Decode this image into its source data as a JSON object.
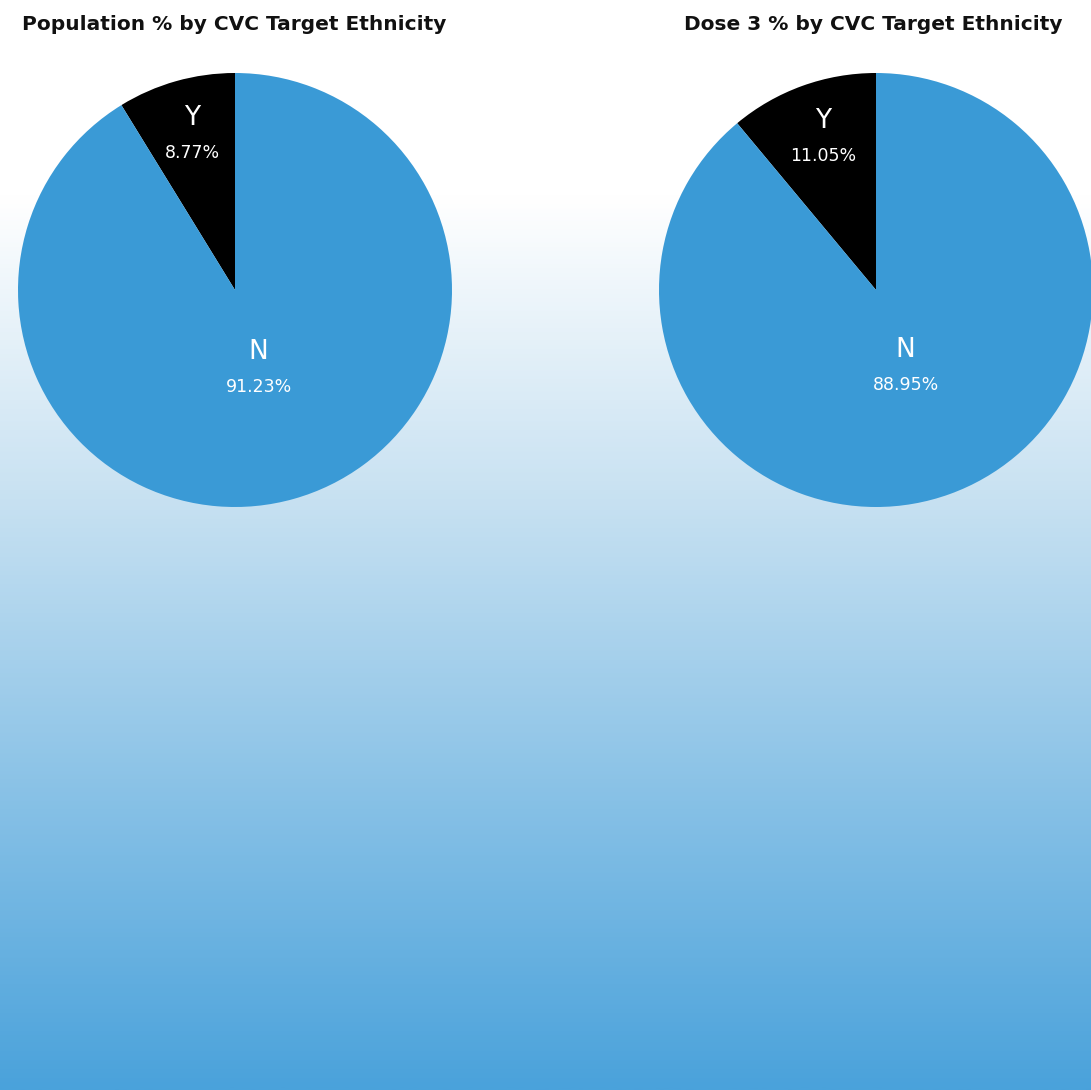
{
  "chart_data": [
    {
      "type": "pie",
      "title": "Population % by CVC Target Ethnicity",
      "categories": [
        "Y",
        "N"
      ],
      "values": [
        8.77,
        91.23
      ],
      "value_labels": [
        "8.77%",
        "91.23%"
      ],
      "colors": [
        "#000000",
        "#3a9ad6"
      ],
      "data_labels": true
    },
    {
      "type": "pie",
      "title": "Dose 3 % by CVC Target Ethnicity",
      "categories": [
        "Y",
        "N"
      ],
      "values": [
        11.05,
        88.95
      ],
      "value_labels": [
        "11.05%",
        "88.95%"
      ],
      "colors": [
        "#000000",
        "#3a9ad6"
      ],
      "data_labels": true
    }
  ]
}
